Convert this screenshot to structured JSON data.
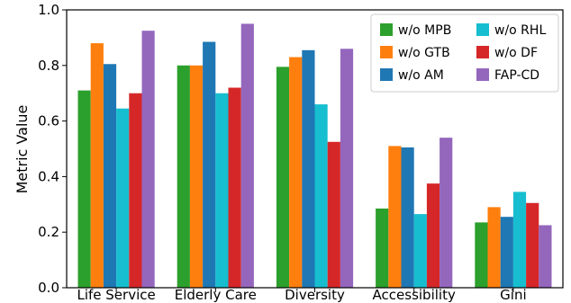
{
  "chart_data": {
    "type": "bar",
    "categories": [
      "Life Service",
      "Elderly Care",
      "Diversity",
      "Accessibility",
      "Gini"
    ],
    "series": [
      {
        "name": "w/o MPB",
        "color": "#2ca02c",
        "values": [
          0.71,
          0.8,
          0.795,
          0.285,
          0.235
        ]
      },
      {
        "name": "w/o GTB",
        "color": "#ff7f0e",
        "values": [
          0.88,
          0.8,
          0.83,
          0.51,
          0.29
        ]
      },
      {
        "name": "w/o AM",
        "color": "#1f77b4",
        "values": [
          0.805,
          0.885,
          0.855,
          0.505,
          0.255
        ]
      },
      {
        "name": "w/o RHL",
        "color": "#17becf",
        "values": [
          0.645,
          0.7,
          0.66,
          0.265,
          0.345
        ]
      },
      {
        "name": "w/o DF",
        "color": "#d62728",
        "values": [
          0.7,
          0.72,
          0.525,
          0.375,
          0.305
        ]
      },
      {
        "name": "FAP-CD",
        "color": "#9467bd",
        "values": [
          0.925,
          0.95,
          0.86,
          0.54,
          0.225
        ]
      }
    ],
    "title": "",
    "xlabel": "",
    "ylabel": "Metric Value",
    "ylim": [
      0.0,
      1.0
    ],
    "yticks": [
      "0.0",
      "0.2",
      "0.4",
      "0.6",
      "0.8",
      "1.0"
    ],
    "grid": false,
    "legend_position": "top-right",
    "legend_columns": 2
  }
}
